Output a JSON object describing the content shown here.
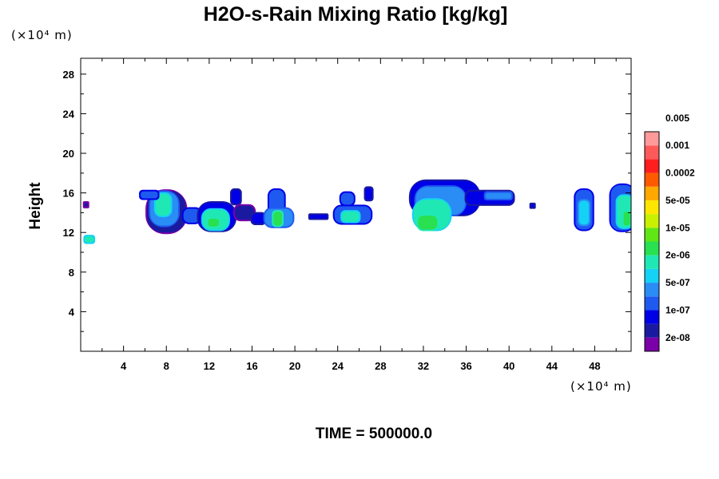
{
  "chart_data": {
    "type": "heatmap",
    "title": "H2O-s-Rain Mixing Ratio [kg/kg]",
    "ylabel": "Height",
    "y_unit_label": "(×10⁴ m)",
    "x_unit_label": "(×10⁴ m)",
    "xlim": [
      0,
      51.4
    ],
    "ylim": [
      0,
      29.6
    ],
    "x_ticks": [
      4,
      8,
      12,
      16,
      20,
      24,
      28,
      32,
      36,
      40,
      44,
      48
    ],
    "y_ticks": [
      4,
      8,
      12,
      16,
      20,
      24,
      28
    ],
    "colorbar": {
      "colors": [
        "#7a00a8",
        "#1a1aa0",
        "#0000e6",
        "#1e5af0",
        "#2a8cf5",
        "#14d2f5",
        "#20e8b4",
        "#28e050",
        "#5fe614",
        "#c8f000",
        "#ffe600",
        "#ffa800",
        "#ff5a00",
        "#ff1e1e",
        "#ff5a5a",
        "#ff9a9a"
      ],
      "labels": [
        "2e-08",
        "1e-07",
        "5e-07",
        "2e-06",
        "1e-05",
        "5e-05",
        "0.0002",
        "0.001",
        "0.005"
      ]
    },
    "footer": "TIME = 500000.0",
    "cells": [
      {
        "x": 0.5,
        "y": 14.8,
        "w": 0.3,
        "h": 0.4,
        "level": 1
      },
      {
        "x": 0.8,
        "y": 11.3,
        "w": 0.8,
        "h": 0.6,
        "level": 6
      },
      {
        "x": 8.0,
        "y": 14.1,
        "w": 3.6,
        "h": 4.2,
        "level": 1
      },
      {
        "x": 7.8,
        "y": 14.4,
        "w": 2.6,
        "h": 3.4,
        "level": 4
      },
      {
        "x": 7.7,
        "y": 14.8,
        "w": 1.4,
        "h": 2.2,
        "level": 6
      },
      {
        "x": 6.4,
        "y": 15.8,
        "w": 1.6,
        "h": 0.7,
        "level": 3
      },
      {
        "x": 10.4,
        "y": 13.7,
        "w": 1.6,
        "h": 1.4,
        "level": 3
      },
      {
        "x": 12.7,
        "y": 13.6,
        "w": 3.4,
        "h": 2.8,
        "level": 2
      },
      {
        "x": 12.6,
        "y": 13.3,
        "w": 2.4,
        "h": 2.0,
        "level": 6
      },
      {
        "x": 12.4,
        "y": 13.0,
        "w": 1.0,
        "h": 0.8,
        "level": 7
      },
      {
        "x": 14.5,
        "y": 15.6,
        "w": 0.8,
        "h": 1.4,
        "level": 2
      },
      {
        "x": 15.3,
        "y": 14.0,
        "w": 1.8,
        "h": 1.4,
        "level": 1
      },
      {
        "x": 16.6,
        "y": 13.4,
        "w": 1.2,
        "h": 1.0,
        "level": 2
      },
      {
        "x": 18.3,
        "y": 14.8,
        "w": 1.4,
        "h": 3.0,
        "level": 3
      },
      {
        "x": 18.5,
        "y": 13.5,
        "w": 2.6,
        "h": 1.8,
        "level": 4
      },
      {
        "x": 18.4,
        "y": 13.4,
        "w": 0.8,
        "h": 1.4,
        "level": 7
      },
      {
        "x": 22.2,
        "y": 13.6,
        "w": 1.6,
        "h": 0.35,
        "level": 2
      },
      {
        "x": 24.9,
        "y": 15.4,
        "w": 1.2,
        "h": 1.2,
        "level": 3
      },
      {
        "x": 25.4,
        "y": 13.8,
        "w": 3.4,
        "h": 1.7,
        "level": 3
      },
      {
        "x": 25.2,
        "y": 13.6,
        "w": 1.6,
        "h": 1.0,
        "level": 6
      },
      {
        "x": 26.9,
        "y": 15.9,
        "w": 0.6,
        "h": 1.2,
        "level": 2
      },
      {
        "x": 34.0,
        "y": 15.5,
        "w": 6.4,
        "h": 3.4,
        "level": 2
      },
      {
        "x": 33.6,
        "y": 15.2,
        "w": 4.6,
        "h": 2.8,
        "level": 4
      },
      {
        "x": 32.8,
        "y": 13.8,
        "w": 3.4,
        "h": 3.0,
        "level": 6
      },
      {
        "x": 32.4,
        "y": 13.0,
        "w": 1.8,
        "h": 1.4,
        "level": 7
      },
      {
        "x": 38.2,
        "y": 15.5,
        "w": 4.4,
        "h": 1.3,
        "level": 2
      },
      {
        "x": 39.0,
        "y": 15.7,
        "w": 2.4,
        "h": 0.6,
        "level": 4
      },
      {
        "x": 42.2,
        "y": 14.7,
        "w": 0.3,
        "h": 0.3,
        "level": 2
      },
      {
        "x": 47.0,
        "y": 14.3,
        "w": 1.6,
        "h": 4.0,
        "level": 3
      },
      {
        "x": 47.0,
        "y": 14.0,
        "w": 0.9,
        "h": 2.4,
        "level": 5
      },
      {
        "x": 50.6,
        "y": 14.5,
        "w": 2.2,
        "h": 4.6,
        "level": 3
      },
      {
        "x": 50.8,
        "y": 14.1,
        "w": 1.4,
        "h": 3.2,
        "level": 6
      },
      {
        "x": 51.0,
        "y": 13.4,
        "w": 0.6,
        "h": 1.4,
        "level": 7
      }
    ]
  }
}
